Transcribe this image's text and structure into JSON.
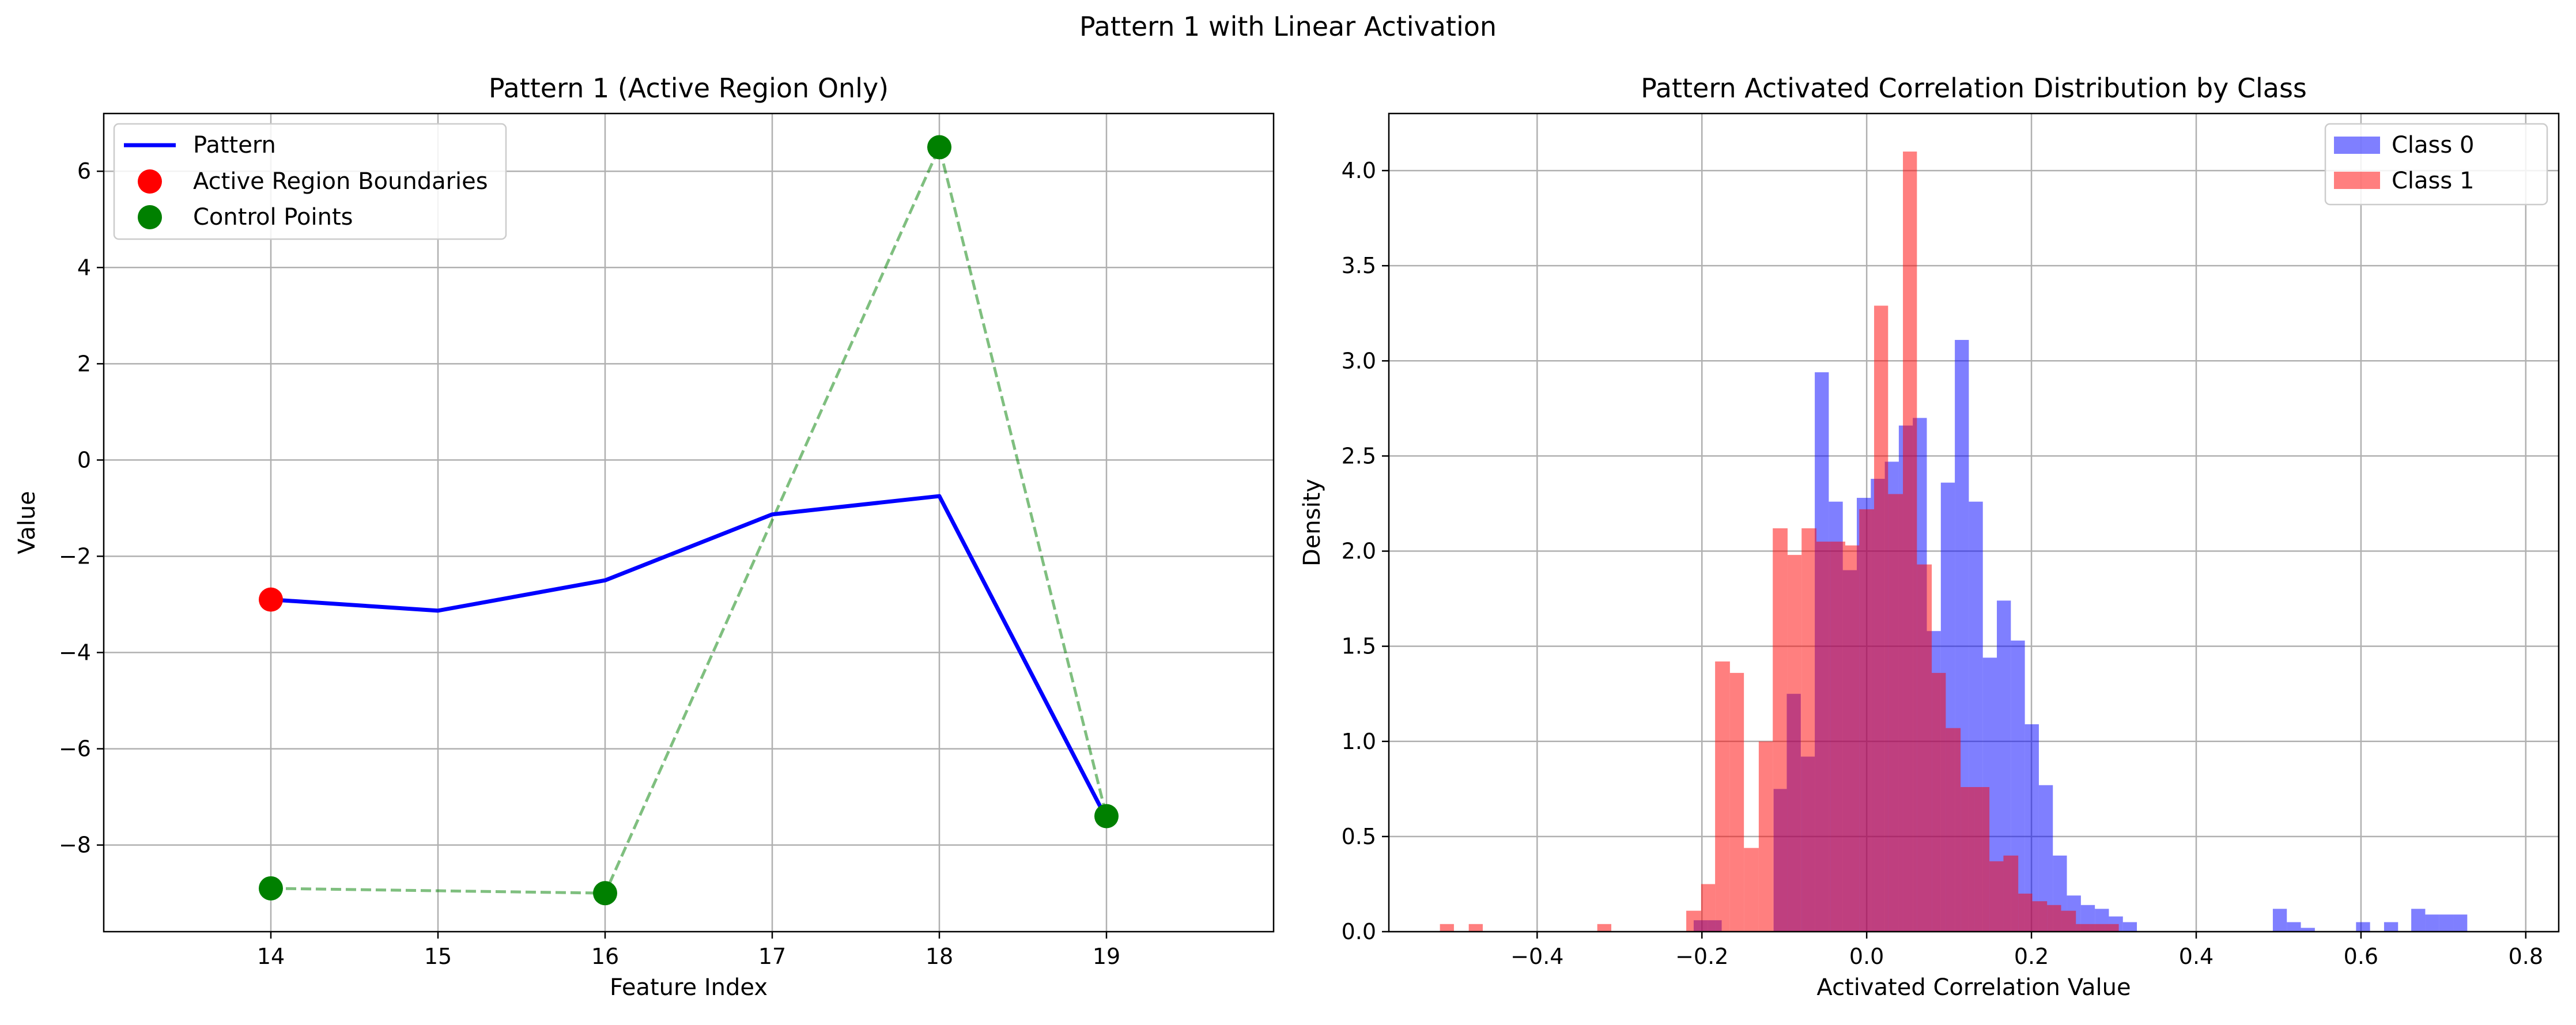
{
  "figure": {
    "suptitle": "Pattern 1 with Linear Activation"
  },
  "chart_data": [
    {
      "type": "line",
      "title": "Pattern 1 (Active Region Only)",
      "xlabel": "Feature Index",
      "ylabel": "Value",
      "xlim": [
        13,
        20
      ],
      "ylim": [
        -9.8,
        7.2
      ],
      "xticks": [
        14,
        15,
        16,
        17,
        18,
        19
      ],
      "yticks": [
        -8,
        -6,
        -4,
        -2,
        0,
        2,
        4,
        6
      ],
      "grid": true,
      "legend_position": "upper-left",
      "series": [
        {
          "name": "Pattern",
          "kind": "line",
          "color": "#0000ff",
          "linestyle": "solid",
          "x": [
            14,
            15,
            16,
            17,
            18,
            19
          ],
          "y": [
            -2.9,
            -3.13,
            -2.5,
            -1.13,
            -0.75,
            -7.45
          ]
        },
        {
          "name": "Active Region Boundaries",
          "kind": "scatter",
          "color": "#ff0000",
          "x": [
            14
          ],
          "y": [
            -2.9
          ]
        },
        {
          "name": "Control Points",
          "kind": "scatter",
          "color": "#008000",
          "x": [
            14,
            16,
            18,
            19
          ],
          "y": [
            -8.9,
            -9.0,
            6.5,
            -7.4
          ],
          "connector": {
            "color": "#008000",
            "linestyle": "dashed",
            "alpha": 0.5
          }
        }
      ]
    },
    {
      "type": "histogram",
      "title": "Pattern Activated Correlation Distribution by Class",
      "xlabel": "Activated Correlation Value",
      "ylabel": "Density",
      "xlim": [
        -0.58,
        0.84
      ],
      "ylim": [
        0,
        4.3
      ],
      "xticks": [
        -0.4,
        -0.2,
        0.0,
        0.2,
        0.4,
        0.6,
        0.8
      ],
      "xticklabels": [
        "−0.4",
        "−0.2",
        "0.0",
        "0.2",
        "0.4",
        "0.6",
        "0.8"
      ],
      "yticks": [
        0.0,
        0.5,
        1.0,
        1.5,
        2.0,
        2.5,
        3.0,
        3.5,
        4.0
      ],
      "yticklabels": [
        "0.0",
        "0.5",
        "1.0",
        "1.5",
        "2.0",
        "2.5",
        "3.0",
        "3.5",
        "4.0"
      ],
      "grid": true,
      "legend_position": "upper-right",
      "series": [
        {
          "name": "Class 0",
          "color": "#0000ff",
          "alpha": 0.5,
          "bins": [
            [
              -0.21,
              -0.193,
              0.06
            ],
            [
              -0.193,
              -0.176,
              0.06
            ],
            [
              -0.113,
              -0.097,
              0.75
            ],
            [
              -0.097,
              -0.08,
              1.25
            ],
            [
              -0.08,
              -0.063,
              0.92
            ],
            [
              -0.063,
              -0.046,
              2.94
            ],
            [
              -0.046,
              -0.029,
              2.26
            ],
            [
              -0.029,
              -0.012,
              1.9
            ],
            [
              -0.012,
              0.005,
              2.28
            ],
            [
              0.005,
              0.022,
              2.38
            ],
            [
              0.022,
              0.039,
              2.47
            ],
            [
              0.039,
              0.056,
              2.66
            ],
            [
              0.056,
              0.073,
              2.7
            ],
            [
              0.073,
              0.09,
              1.58
            ],
            [
              0.09,
              0.107,
              2.36
            ],
            [
              0.107,
              0.124,
              3.11
            ],
            [
              0.124,
              0.141,
              2.26
            ],
            [
              0.141,
              0.158,
              1.44
            ],
            [
              0.158,
              0.175,
              1.74
            ],
            [
              0.175,
              0.192,
              1.53
            ],
            [
              0.192,
              0.209,
              1.09
            ],
            [
              0.209,
              0.226,
              0.77
            ],
            [
              0.226,
              0.243,
              0.4
            ],
            [
              0.243,
              0.26,
              0.19
            ],
            [
              0.26,
              0.277,
              0.14
            ],
            [
              0.277,
              0.294,
              0.12
            ],
            [
              0.294,
              0.311,
              0.08
            ],
            [
              0.311,
              0.328,
              0.05
            ],
            [
              0.493,
              0.51,
              0.12
            ],
            [
              0.51,
              0.527,
              0.05
            ],
            [
              0.527,
              0.544,
              0.02
            ],
            [
              0.594,
              0.611,
              0.05
            ],
            [
              0.628,
              0.645,
              0.05
            ],
            [
              0.661,
              0.678,
              0.12
            ],
            [
              0.678,
              0.695,
              0.09
            ],
            [
              0.695,
              0.712,
              0.09
            ],
            [
              0.712,
              0.729,
              0.09
            ]
          ]
        },
        {
          "name": "Class 1",
          "color": "#ff0000",
          "alpha": 0.5,
          "bins": [
            [
              -0.518,
              -0.501,
              0.04
            ],
            [
              -0.483,
              -0.466,
              0.04
            ],
            [
              -0.327,
              -0.31,
              0.04
            ],
            [
              -0.219,
              -0.201,
              0.11
            ],
            [
              -0.201,
              -0.184,
              0.25
            ],
            [
              -0.184,
              -0.166,
              1.42
            ],
            [
              -0.166,
              -0.149,
              1.36
            ],
            [
              -0.149,
              -0.131,
              0.44
            ],
            [
              -0.131,
              -0.114,
              1.0
            ],
            [
              -0.114,
              -0.096,
              2.12
            ],
            [
              -0.096,
              -0.079,
              1.98
            ],
            [
              -0.079,
              -0.061,
              2.12
            ],
            [
              -0.061,
              -0.044,
              2.05
            ],
            [
              -0.044,
              -0.026,
              2.05
            ],
            [
              -0.026,
              -0.009,
              2.03
            ],
            [
              -0.009,
              0.009,
              2.22
            ],
            [
              0.009,
              0.026,
              3.29
            ],
            [
              0.026,
              0.044,
              2.3
            ],
            [
              0.044,
              0.061,
              4.1
            ],
            [
              0.061,
              0.079,
              1.93
            ],
            [
              0.079,
              0.096,
              1.36
            ],
            [
              0.096,
              0.114,
              1.07
            ],
            [
              0.114,
              0.131,
              0.76
            ],
            [
              0.131,
              0.149,
              0.76
            ],
            [
              0.149,
              0.166,
              0.37
            ],
            [
              0.166,
              0.184,
              0.4
            ],
            [
              0.184,
              0.201,
              0.2
            ],
            [
              0.201,
              0.219,
              0.16
            ],
            [
              0.219,
              0.236,
              0.14
            ],
            [
              0.236,
              0.254,
              0.11
            ],
            [
              0.254,
              0.271,
              0.04
            ],
            [
              0.271,
              0.289,
              0.04
            ],
            [
              0.289,
              0.306,
              0.04
            ]
          ]
        }
      ]
    }
  ]
}
